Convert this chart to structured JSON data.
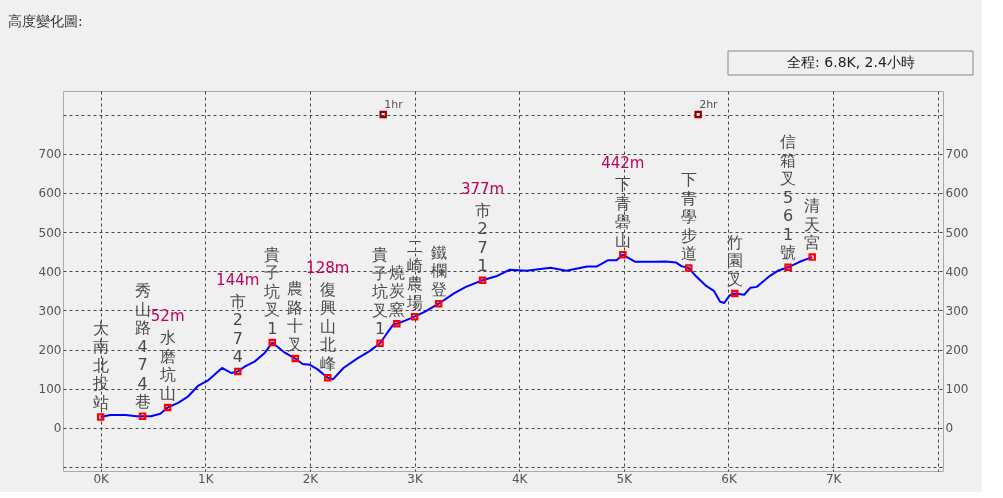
{
  "chart_data": {
    "type": "line",
    "title": "高度變化圖:",
    "subtitle": "全程: 6.8K, 2.4小時",
    "xlim": [
      -0.36,
      8.05
    ],
    "ylim": [
      -110,
      860
    ],
    "y2lim": [
      -110,
      860
    ],
    "xticks": [
      {
        "value": 0,
        "label": "0K"
      },
      {
        "value": 1,
        "label": "1K"
      },
      {
        "value": 2,
        "label": "2K"
      },
      {
        "value": 3,
        "label": "3K"
      },
      {
        "value": 4,
        "label": "4K"
      },
      {
        "value": 5,
        "label": "5K"
      },
      {
        "value": 6,
        "label": "6K"
      },
      {
        "value": 7,
        "label": "7K"
      },
      {
        "value": 8,
        "label": null
      }
    ],
    "yticks": [
      {
        "value": -100,
        "label": null
      },
      0,
      100,
      200,
      300,
      400,
      500,
      600,
      700,
      {
        "value": 800,
        "label": null
      }
    ],
    "y2ticks": [
      {
        "value": -100,
        "label": null
      },
      0,
      100,
      200,
      300,
      400,
      500,
      600,
      700,
      {
        "value": 800,
        "label": null
      }
    ],
    "grid": true,
    "line_style": "solid",
    "series": [
      {
        "type": "line",
        "color": "#0000ff",
        "marker": "none",
        "x": [
          0,
          0.09,
          0.24,
          0.34,
          0.4,
          0.48,
          0.57,
          0.64,
          0.74,
          0.83,
          0.93,
          1.03,
          1.16,
          1.25,
          1.31,
          1.38,
          1.47,
          1.57,
          1.64,
          1.76,
          1.86,
          1.93,
          2.0,
          2.07,
          2.17,
          2.22,
          2.32,
          2.45,
          2.57,
          2.67,
          2.74,
          2.8,
          2.83,
          2.91,
          3.0,
          3.1,
          3.23,
          3.38,
          3.49,
          3.65,
          3.78,
          3.91,
          4.07,
          4.3,
          4.45,
          4.65,
          4.74,
          4.85,
          4.93,
          4.99,
          5.11,
          5.29,
          5.4,
          5.5,
          5.55,
          5.62,
          5.69,
          5.78,
          5.86,
          5.92,
          5.96,
          6.01,
          6.06,
          6.15,
          6.21,
          6.27,
          6.39,
          6.47,
          6.57,
          6.68,
          6.8
        ],
        "values": [
          28,
          33,
          33,
          30,
          30,
          30,
          36,
          52,
          64,
          79,
          107,
          122,
          153,
          140,
          144,
          157,
          169,
          192,
          218,
          192,
          177,
          163,
          161,
          150,
          128,
          124,
          153,
          177,
          196,
          216,
          243,
          265,
          266,
          274,
          284,
          297,
          317,
          344,
          360,
          377,
          387,
          404,
          401,
          409,
          401,
          412,
          412,
          428,
          428,
          442,
          424,
          424,
          425,
          422,
          413,
          408,
          387,
          364,
          350,
          322,
          319,
          338,
          343,
          340,
          358,
          360,
          387,
          401,
          410,
          424,
          436
        ]
      },
      {
        "type": "scatter",
        "color": "#ff0000",
        "marker": "square",
        "x": [
          0,
          0.4,
          0.64,
          1.31,
          1.64,
          1.86,
          2.17,
          2.67,
          2.83,
          3.0,
          3.23,
          3.65,
          4.99,
          5.62,
          6.06,
          6.57,
          6.8
        ],
        "values": [
          28,
          30,
          52,
          144,
          218,
          177,
          128,
          216,
          266,
          284,
          317,
          377,
          442,
          408,
          343,
          410,
          436
        ]
      },
      {
        "type": "scatter",
        "color": "#990000",
        "marker": "square",
        "x": [
          2.7,
          5.71
        ],
        "values": [
          800,
          800
        ]
      }
    ],
    "annotations": [
      {
        "text": "大南北投站",
        "x": 0,
        "y": 28
      },
      {
        "text": "秀山路474巷",
        "x": 0.4,
        "y": 30
      },
      {
        "text": "水磨坑山",
        "x": 0.64,
        "y": 52
      },
      "52m",
      {
        "text": "市274",
        "x": 1.31,
        "y": 144
      },
      "144m",
      {
        "text": "貴子坑叉1",
        "x": 1.64,
        "y": 218
      },
      {
        "text": "農路十叉",
        "x": 1.86,
        "y": 177
      },
      {
        "text": "復興山北峰",
        "x": 2.17,
        "y": 128
      },
      "128m",
      {
        "text": "貴子坑叉1",
        "x": 2.67,
        "y": 216
      },
      {
        "text": "燒炭窯",
        "x": 2.83,
        "y": 266
      },
      {
        "text": "二崎農場",
        "x": 3.0,
        "y": 284
      },
      {
        "text": "鐵欄登",
        "x": 3.23,
        "y": 317
      },
      {
        "text": "市271",
        "x": 3.65,
        "y": 377
      },
      "377m",
      {
        "text": "下青礐山",
        "x": 4.99,
        "y": 442
      },
      "442m",
      {
        "text": "下青學步道",
        "x": 5.62,
        "y": 408
      },
      {
        "text": "竹園叉",
        "x": 6.06,
        "y": 343
      },
      {
        "text": "信箱叉561號",
        "x": 6.57,
        "y": 410
      },
      {
        "text": "清天宮",
        "x": 6.8,
        "y": 436
      },
      {
        "text": "1hr",
        "x": 2.7,
        "y": 800
      },
      {
        "text": "2hr",
        "x": 5.71,
        "y": 800
      }
    ]
  }
}
